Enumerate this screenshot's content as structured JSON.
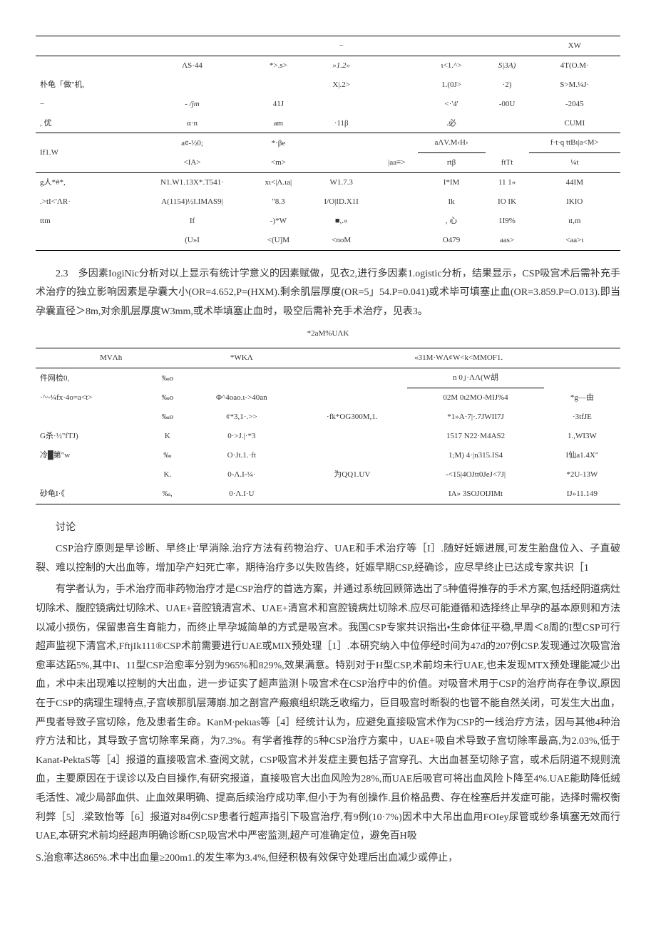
{
  "table1": {
    "header_right": "XW",
    "rows": [
      [
        "",
        "",
        "ΛS·44",
        "*>.s>",
        "»1.2»",
        "",
        "ι<1.^>",
        "S|3A)",
        "4T(O.M·"
      ],
      [
        "朴龟「做\"机,",
        "",
        "",
        "",
        "X|.2>",
        "",
        "1.(0J>",
        "·2)",
        "S>M.¼J·"
      ],
      [
        "−",
        "",
        "- /jm",
        "41J",
        "",
        "",
        "<·'4'",
        "-00U",
        "-2045"
      ],
      [
        ", 优",
        "",
        "α·n",
        "am",
        "·11β",
        "",
        ".必",
        "",
        "CUMI"
      ],
      [
        "",
        "",
        "a¢-½0;",
        "*·βe",
        "",
        "",
        "aΛV.M‹H›",
        "",
        "f·t·q ttBι|a<M>"
      ],
      [
        "If1.W",
        "",
        "<IA>",
        "<m>",
        "",
        "|aa≡>",
        "rtβ",
        "ftTt",
        "¼t"
      ],
      [
        "g人*#*,",
        "",
        "N1.W1.13X*.T541·",
        "xι<|Λ.ιa|",
        "W1.7.3",
        "",
        "I*IM",
        "11    1«",
        "44IM"
      ],
      [
        ".>tI<'ΛR·",
        "",
        "A(1154)½I.IMAS9|",
        "\"8.3",
        "I/O|ID.X1I",
        "",
        "Ik",
        "IO    IK",
        "IKIO"
      ],
      [
        "ttm",
        "",
        "If",
        "-)*W",
        "■,.«",
        "",
        ", 心",
        "1I9%",
        "ιt,m"
      ],
      [
        "",
        "",
        "(U»I",
        "<(U]M",
        "<noM",
        "",
        "O479",
        "aas>",
        "<aa>ι"
      ]
    ],
    "borders": {
      "after_row_header": true,
      "mid_after": 3,
      "mid_after2": 5,
      "bottom": true
    }
  },
  "para_2_3": "2.3　多因素IogiNic分析对以上显示有统计学意义的因素赋做，见衣2,进行多因素1.ogistic分析，结果显示，CSP吸宫术后需补充手术治疗的独立影响因素是孕囊大小(OR=4.652,P=(HXM).剩余肌层厚度(OR=5」54.P=0.041)或术毕可填塞止血(OR=3.859.P=O.013).即当孕囊直径＞8m,对余肌层厚度W3mm,或术毕填塞止血时，吸空后需补充手术治疗，见表3。",
  "table2": {
    "caption": "*2aM%UΛK",
    "head_right": "«31M·WΛ¢W<k<MMOF1.",
    "head_left": "MVΛh",
    "head_mid": "*WKΛ",
    "rows": [
      [
        "件网检0,",
        "‰o",
        "",
        "",
        "n     0」·ΛΛ(W胡",
        ""
      ],
      [
        "·^~¼fx·4o=a<t>",
        "‰o",
        "Φ^4oao.ι·>40an",
        "",
        "02M 0ι2MO-MIJ%4",
        "*g—由"
      ],
      [
        "",
        "‰o",
        "¢*3,1·.>>",
        "·fk*OG300M,1.",
        "*1»A·7|·.7JWII7J",
        "·3tfJE"
      ],
      [
        "G杀·½\"fTJ)",
        "K",
        "0·>J.|·*3",
        "",
        "1517 N22·M4AS2",
        "1.,WI3W"
      ],
      [
        "冷█第\"w",
        "‰",
        "O·Jt.1.·ft",
        "",
        "1;M)    4·|n315.IS4",
        "I仙a1.4X\""
      ],
      [
        "",
        "K.",
        "0-Λ.I-¼·",
        "为QQ1.UV",
        "-<15|4OJtt0JeJ<7J|",
        "*2U-13W"
      ],
      [
        "砂龟I·《",
        "‰,",
        "0·Λ.I·U",
        "",
        "IA»    3SOJOIJIMt",
        "IJ»11.149"
      ]
    ]
  },
  "discussion_head": "讨论",
  "discussion_p1": "CSP治疗原则是早诊断、早终止'早消除.治疗方法有药物治疗、UAE和手术治疗等［I］.随好妊娠进展,可发生胎盘位入、子直破裂、难以控制的大出血等，增加孕产妇死亡率，期待治疗多以失败告终，妊娠早期CSP,经确诊，应尽早终止已达成专家共识［1",
  "discussion_p2": "有学者认为，手术治疗而非药物治疗才是CSP治疗的首选方案，并通过系统回顾筛选出了5种值得推存的手术方案,包括经阴道病灶切除术、腹腔镜病灶切除术、UAE+音腔镜清宫术、UAE+清宫术和宫腔镜病灶切除术.应尽可能遵循和选择终止早孕的基本原则和方法以减小损伤，保留患音生育能力，而终止早孕城简单的方式是吸宫术。我国CSP专家共识指出•生命体征平稳,早周＜8周的I型CSP可行超声监视下清宫术,FftjIk111®CSP术前需要进行UAE或MIX预处理［1］.本研究纳入中位停经时间为47d的207例CSP.发现通过次吸宫治愈率达跖5%,其中I、11型CSP治愈率分别为965%和829%,效果满意。特别对于H型CSP,术前均未行UAE,也未发现MTX预处理能减少出血，术中未出现难以控制的大出血，进一步证实了超声监测卜吸宫术在CSP治疗中的价值。对吸音术用于CSP的治疗尚存在争议,原因在于CSP的病理生理特点,子宫峡那肌层薄崩.加之剖宫产瘢痕组织跳乏收缩力，巨目吸宫时断裂的也管不能自然关闭，可发生大出血，严曳者导致子宫切除，危及患者生命。KanM∙pekιas等［4］经统计认为，应避免直接吸宫术作为CSP的一线治疗方法，因与其他4种治疗方法和比，其导致子宫切除率呆商，为7.3%。有学者推荐的5种CSP治疗方案中，UAE+吸自术导致子宫切除率最高,为2.03%,低于Kanat-PektaS等［4］报道的直接吸宫术.查阅文就，CSP吸宫术并发症主要包括子宫穿孔、大出血甚至切除子宫，或术后阴道不规则流血，主要原因在于误诊以及白目操作,有研究报道，直接吸官大出血风险为28%,而UAE后吸官可将出血风险卜降至4%.UAE能助降低绒毛活性、减少局部血供、止血效果明确、提高后续治疗成功率,但小于为有创操作.且价格品费、存在栓塞后并发症可能，选择时需权衡利弊［5］.梁致怡等［6］报道对84例CSP患者行超声指引下吸宫治疗,有9例(10·7%)因术中大吊出血用FOIey尿管或纱条填塞无效而行UAE,本研究术前均经超声明确诊断CSP,吸宫术中严密监测,超产可准确定位，避免百H吸",
  "discussion_p3": "S.治愈率达865%.术中出血量≥200m1.的发生率为3.4%,但经积极有效保守处理后出血减少或停止，"
}
